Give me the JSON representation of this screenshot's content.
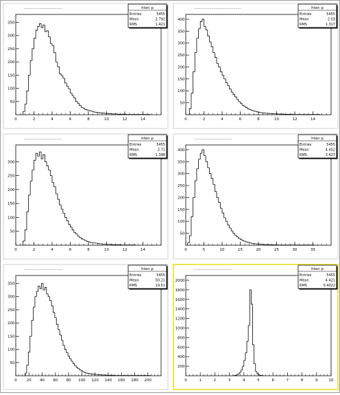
{
  "chart_data": [
    {
      "type": "bar",
      "title": "...................................",
      "stats": {
        "name": "hten p",
        "entries_label": "Entries",
        "entries": "5455",
        "mean_label": "Mean",
        "mean": "2.792",
        "rms_label": "RMS",
        "rms": "1.421"
      },
      "xlim": [
        0,
        16
      ],
      "ylim": [
        0,
        380
      ],
      "xticks": [
        0,
        2,
        4,
        6,
        8,
        10,
        12,
        14
      ],
      "yticks": [
        50,
        100,
        150,
        200,
        250,
        300,
        350
      ],
      "hist": {
        "x0": 0.8,
        "bin": 0.2,
        "values": [
          12,
          40,
          90,
          150,
          205,
          250,
          290,
          320,
          335,
          345,
          330,
          340,
          315,
          318,
          295,
          270,
          262,
          235,
          200,
          182,
          155,
          148,
          138,
          120,
          108,
          98,
          82,
          72,
          63,
          50,
          43,
          35,
          28,
          25,
          20,
          18,
          16,
          14,
          12,
          10,
          9,
          8,
          7,
          7,
          6,
          5,
          5,
          4,
          4,
          3,
          3,
          3,
          2,
          2,
          2,
          2,
          2,
          1,
          1,
          1,
          1,
          1,
          1,
          1,
          1,
          1,
          1,
          1,
          1,
          1
        ]
      }
    },
    {
      "type": "bar",
      "title": "...........................................",
      "stats": {
        "name": "hten p",
        "entries_label": "Entries",
        "entries": "5455",
        "mean_label": "Mean",
        "mean": "2.03",
        "rms_label": "RMS",
        "rms": "1.317"
      },
      "xlim": [
        0,
        16
      ],
      "ylim": [
        0,
        420
      ],
      "xticks": [
        0,
        2,
        4,
        6,
        8,
        10,
        12,
        14
      ],
      "yticks": [
        50,
        100,
        150,
        200,
        250,
        300,
        350,
        400
      ],
      "hist": {
        "x0": 0.4,
        "bin": 0.2,
        "values": [
          25,
          90,
          180,
          260,
          320,
          360,
          390,
          400,
          370,
          355,
          330,
          305,
          285,
          260,
          240,
          215,
          200,
          180,
          165,
          150,
          135,
          122,
          108,
          95,
          85,
          75,
          65,
          55,
          48,
          40,
          35,
          30,
          25,
          22,
          18,
          16,
          14,
          12,
          10,
          9,
          8,
          7,
          6,
          6,
          5,
          5,
          4,
          4,
          3,
          3,
          3,
          3,
          2,
          2,
          2,
          2,
          2,
          1,
          1,
          1,
          1,
          1,
          1,
          1,
          1,
          1,
          1,
          1,
          1,
          1,
          1,
          1
        ]
      }
    },
    {
      "type": "bar",
      "title": "...................................",
      "stats": {
        "name": "hten p",
        "entries_label": "Entries",
        "entries": "5455",
        "mean_label": "Mean",
        "mean": "2.71",
        "rms_label": "RMS",
        "rms": "1.398"
      },
      "xlim": [
        0,
        16
      ],
      "ylim": [
        0,
        360
      ],
      "xticks": [
        0,
        2,
        4,
        6,
        8,
        10,
        12,
        14
      ],
      "yticks": [
        50,
        100,
        150,
        200,
        250,
        300
      ],
      "hist": {
        "x0": 0.8,
        "bin": 0.2,
        "values": [
          15,
          55,
          120,
          180,
          230,
          270,
          305,
          330,
          320,
          335,
          310,
          325,
          300,
          285,
          270,
          250,
          225,
          210,
          185,
          165,
          145,
          130,
          115,
          100,
          88,
          75,
          65,
          55,
          46,
          40,
          33,
          28,
          23,
          20,
          17,
          14,
          12,
          10,
          9,
          8,
          7,
          6,
          5,
          5,
          4,
          4,
          3,
          3,
          3,
          2,
          2,
          2,
          2,
          2,
          1,
          1,
          1,
          1,
          1,
          1,
          1,
          1
        ]
      }
    },
    {
      "type": "bar",
      "title": "...................................",
      "stats": {
        "name": "hten p",
        "entries_label": "Entries",
        "entries": "5455",
        "mean_label": "Mean",
        "mean": "4.452",
        "rms_label": "RMS",
        "rms": "3.427"
      },
      "xlim": [
        0,
        40
      ],
      "ylim": [
        0,
        420
      ],
      "xticks": [
        0,
        5,
        10,
        15,
        20,
        25,
        30,
        35
      ],
      "yticks": [
        50,
        100,
        150,
        200,
        250,
        300,
        350,
        400
      ],
      "hist": {
        "x0": 0.5,
        "bin": 0.5,
        "values": [
          10,
          40,
          120,
          200,
          270,
          320,
          360,
          385,
          400,
          375,
          350,
          325,
          300,
          280,
          255,
          225,
          200,
          180,
          155,
          135,
          115,
          100,
          85,
          72,
          60,
          50,
          42,
          35,
          29,
          24,
          20,
          17,
          14,
          12,
          10,
          8,
          7,
          6,
          5,
          5,
          4,
          4,
          3,
          3,
          3,
          2,
          2,
          2,
          2,
          1,
          1,
          1,
          1,
          1,
          1,
          1,
          1,
          1,
          1,
          1,
          1,
          1,
          1,
          1,
          1,
          1,
          1,
          1,
          1,
          1
        ]
      }
    },
    {
      "type": "bar",
      "title": "...................................",
      "stats": {
        "name": "hten p",
        "entries_label": "Entries",
        "entries": "5455",
        "mean_label": "Mean",
        "mean": "50.21",
        "rms_label": "RMS",
        "rms": "19.51"
      },
      "xlim": [
        0,
        220
      ],
      "ylim": [
        0,
        380
      ],
      "xticks": [
        0,
        20,
        40,
        60,
        80,
        100,
        120,
        140,
        160,
        180,
        200
      ],
      "yticks": [
        50,
        100,
        150,
        200,
        250,
        300,
        350
      ],
      "hist": {
        "x0": 14,
        "bin": 2.5,
        "values": [
          10,
          40,
          90,
          150,
          210,
          260,
          300,
          320,
          340,
          330,
          350,
          325,
          335,
          310,
          300,
          285,
          265,
          240,
          220,
          195,
          175,
          155,
          135,
          115,
          100,
          88,
          75,
          65,
          55,
          46,
          38,
          32,
          27,
          22,
          18,
          15,
          12,
          10,
          9,
          8,
          7,
          6,
          5,
          5,
          4,
          4,
          3,
          3,
          3,
          2,
          2,
          2,
          2,
          2,
          1,
          1,
          1,
          1,
          1,
          1,
          1,
          1,
          1,
          1,
          1,
          1,
          1,
          1,
          1,
          1,
          1,
          1,
          1,
          1,
          1,
          1
        ]
      }
    },
    {
      "type": "bar",
      "title": "...................................",
      "stats": {
        "name": "hten p",
        "entries_label": "Entries",
        "entries": "5455",
        "mean_label": "Mean",
        "mean": "4.421",
        "rms_label": "RMS",
        "rms": "0.4022"
      },
      "xlim": [
        0,
        10
      ],
      "ylim": [
        0,
        2100
      ],
      "xticks": [
        0,
        1,
        2,
        3,
        4,
        5,
        6,
        7,
        8,
        9,
        10
      ],
      "yticks": [
        200,
        400,
        600,
        800,
        1000,
        1200,
        1400,
        1600,
        1800,
        2000
      ],
      "ytick_labels": [
        "200",
        "400",
        "600",
        "800",
        "1000",
        "1200",
        "1400",
        "1600",
        "1800",
        "2000"
      ],
      "hist": {
        "x0": 3.3,
        "bin": 0.1,
        "values": [
          5,
          10,
          20,
          40,
          70,
          120,
          200,
          320,
          480,
          720,
          1050,
          1800,
          1500,
          650,
          250,
          90,
          40,
          18,
          8,
          4,
          2
        ]
      }
    }
  ],
  "selected_pad": 6,
  "colors": {
    "frame": "#000000",
    "selected": "#e8e84a",
    "background": "#ffffff",
    "line": "#000000"
  }
}
